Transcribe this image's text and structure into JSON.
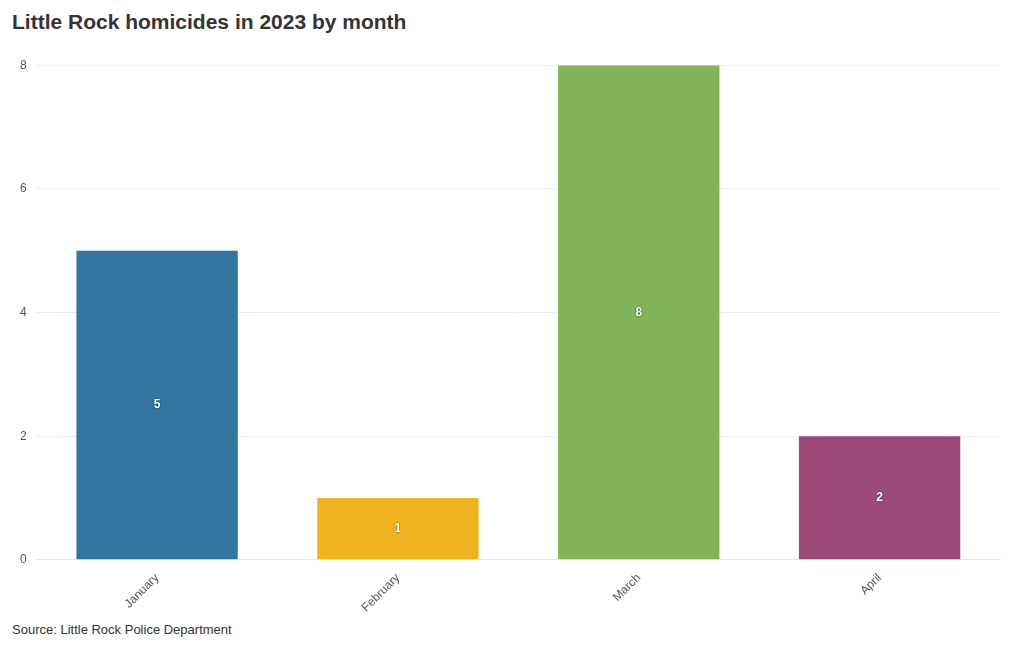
{
  "chart_data": {
    "type": "bar",
    "title": "Little Rock homicides in 2023 by month",
    "source": "Source: Little Rock Police Department",
    "categories": [
      "January",
      "February",
      "March",
      "April"
    ],
    "values": [
      5,
      1,
      8,
      2
    ],
    "colors": [
      "#33769f",
      "#efb320",
      "#82b55a",
      "#9b4a7b"
    ],
    "ylim": [
      0,
      8
    ],
    "yticks": [
      0,
      2,
      4,
      6,
      8
    ],
    "grid": true,
    "data_labels": true
  }
}
